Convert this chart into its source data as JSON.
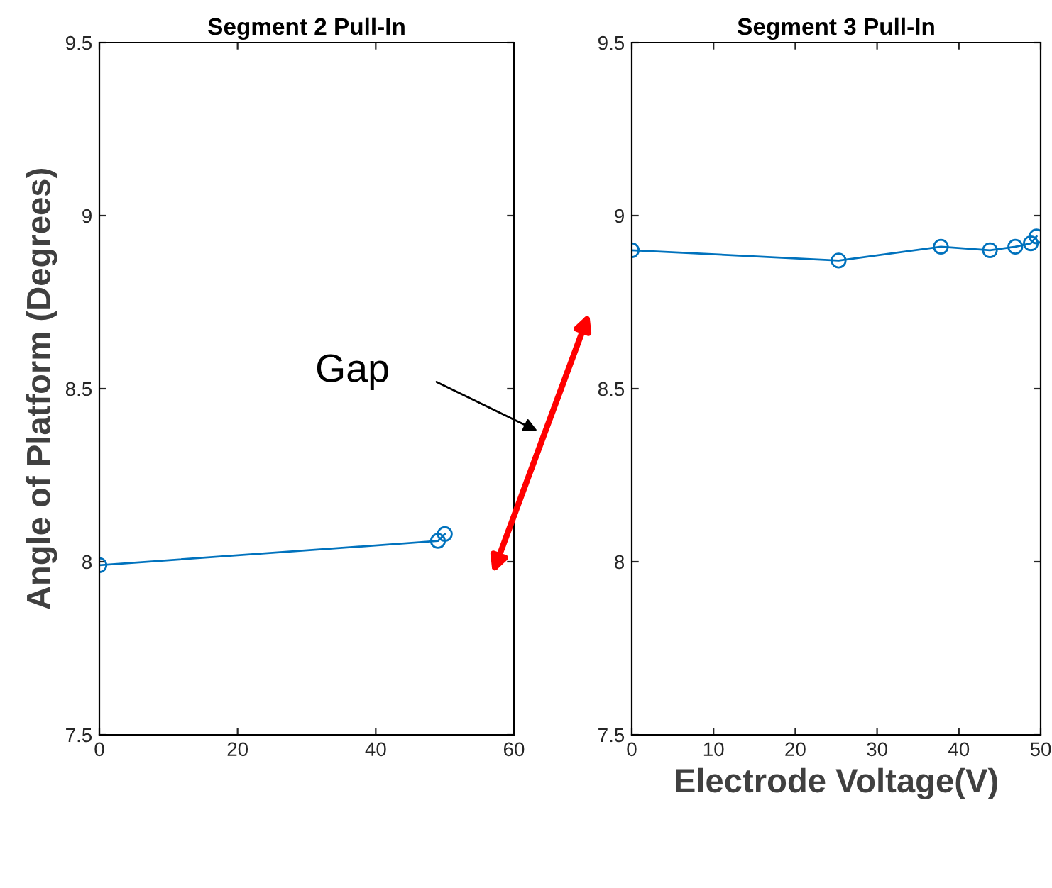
{
  "chart_data": [
    {
      "type": "line",
      "title": "Segment 2 Pull-In",
      "ylabel": "Angle of Platform (Degrees)",
      "annotations": [
        "Gap"
      ],
      "x": [
        0,
        49,
        50
      ],
      "series": [
        {
          "color": "#0072bd",
          "values": [
            7.99,
            8.06,
            8.08
          ]
        }
      ],
      "marker": "circle",
      "xlim": [
        0,
        60
      ],
      "xticks": [
        0,
        20,
        40,
        60
      ],
      "ylim": [
        7.5,
        9.5
      ],
      "yticks": [
        7.5,
        8,
        8.5,
        9,
        9.5
      ],
      "grid": false,
      "legend": false
    },
    {
      "type": "line",
      "title": "Segment 3 Pull-In",
      "xlabel": "Electrode Voltage(V)",
      "x": [
        0,
        25.3,
        37.8,
        43.8,
        46.9,
        48.8,
        49.5
      ],
      "series": [
        {
          "color": "#0072bd",
          "values": [
            8.9,
            8.87,
            8.91,
            8.9,
            8.91,
            8.92,
            8.94
          ]
        }
      ],
      "marker": "circle",
      "xlim": [
        0,
        50
      ],
      "xticks": [
        0,
        10,
        20,
        30,
        40,
        50
      ],
      "ylim": [
        7.5,
        9.5
      ],
      "yticks": [
        7.5,
        8,
        8.5,
        9,
        9.5
      ],
      "grid": false,
      "legend": false
    }
  ]
}
